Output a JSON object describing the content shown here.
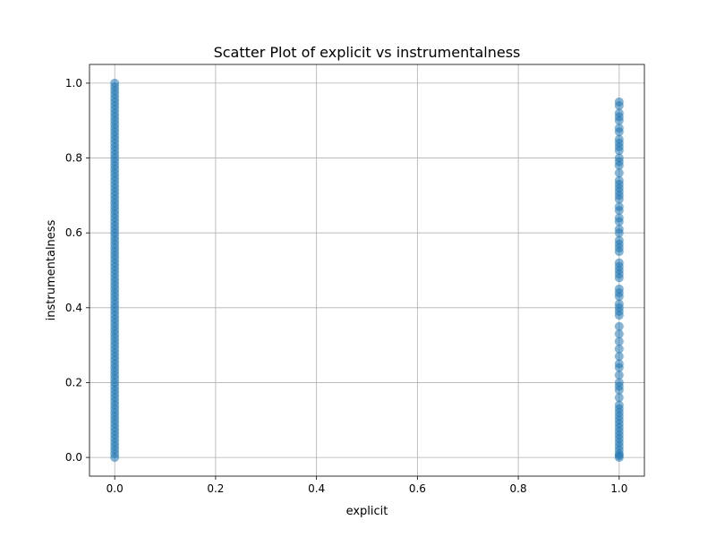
{
  "chart_data": {
    "type": "scatter",
    "title": "Scatter Plot of explicit vs instrumentalness",
    "xlabel": "explicit",
    "ylabel": "instrumentalness",
    "xlim": [
      -0.05,
      1.05
    ],
    "ylim": [
      -0.05,
      1.05
    ],
    "xticks": [
      0.0,
      0.2,
      0.4,
      0.6,
      0.8,
      1.0
    ],
    "xtick_labels": [
      "0.0",
      "0.2",
      "0.4",
      "0.6",
      "0.8",
      "1.0"
    ],
    "yticks": [
      0.0,
      0.2,
      0.4,
      0.6,
      0.8,
      1.0
    ],
    "ytick_labels": [
      "0.0",
      "0.2",
      "0.4",
      "0.6",
      "0.8",
      "1.0"
    ],
    "grid": true,
    "color": "#1f77b4",
    "series": [
      {
        "x": [
          0,
          0,
          0,
          0,
          0,
          0,
          0,
          0,
          0,
          0,
          0,
          0,
          0,
          0,
          0,
          0,
          0,
          0,
          0,
          0,
          0,
          0,
          0,
          0,
          0,
          0,
          0,
          0,
          0,
          0,
          0,
          0,
          0,
          0,
          0,
          0,
          0,
          0,
          0,
          0,
          0,
          0,
          0,
          0,
          0,
          0,
          0,
          0,
          0,
          0,
          0,
          0,
          0,
          0,
          0,
          0,
          0,
          0,
          0,
          0,
          0,
          0,
          0,
          0,
          0,
          0,
          0,
          0,
          0,
          0,
          0,
          0,
          0,
          0,
          0,
          0,
          0,
          0,
          0,
          0,
          0,
          0,
          0,
          0,
          0,
          0,
          0,
          0,
          0,
          0,
          0,
          0,
          0,
          0,
          0,
          0,
          0,
          0,
          0,
          0,
          0
        ],
        "y": [
          0.0,
          0.01,
          0.02,
          0.03,
          0.04,
          0.05,
          0.06,
          0.07,
          0.08,
          0.09,
          0.1,
          0.11,
          0.12,
          0.13,
          0.14,
          0.15,
          0.16,
          0.17,
          0.18,
          0.19,
          0.2,
          0.21,
          0.22,
          0.23,
          0.24,
          0.25,
          0.26,
          0.27,
          0.28,
          0.29,
          0.3,
          0.31,
          0.32,
          0.33,
          0.34,
          0.35,
          0.36,
          0.37,
          0.38,
          0.39,
          0.4,
          0.41,
          0.42,
          0.43,
          0.44,
          0.45,
          0.46,
          0.47,
          0.48,
          0.49,
          0.5,
          0.51,
          0.52,
          0.53,
          0.54,
          0.55,
          0.56,
          0.57,
          0.58,
          0.59,
          0.6,
          0.61,
          0.62,
          0.63,
          0.64,
          0.65,
          0.66,
          0.67,
          0.68,
          0.69,
          0.7,
          0.71,
          0.72,
          0.73,
          0.74,
          0.75,
          0.76,
          0.77,
          0.78,
          0.79,
          0.8,
          0.81,
          0.82,
          0.83,
          0.84,
          0.85,
          0.86,
          0.87,
          0.88,
          0.89,
          0.9,
          0.91,
          0.92,
          0.93,
          0.94,
          0.95,
          0.96,
          0.97,
          0.98,
          0.99,
          1.0
        ]
      },
      {
        "x": [
          1,
          1,
          1,
          1,
          1,
          1,
          1,
          1,
          1,
          1,
          1,
          1,
          1,
          1,
          1,
          1,
          1,
          1,
          1,
          1,
          1,
          1,
          1,
          1,
          1,
          1,
          1,
          1,
          1,
          1,
          1,
          1,
          1,
          1,
          1,
          1,
          1,
          1,
          1,
          1,
          1,
          1,
          1,
          1,
          1,
          1,
          1,
          1,
          1,
          1,
          1,
          1,
          1,
          1,
          1,
          1,
          1,
          1,
          1,
          1,
          1,
          1,
          1,
          1,
          1,
          1,
          1,
          1,
          1,
          1,
          1
        ],
        "y": [
          0.0,
          0.005,
          0.01,
          0.02,
          0.03,
          0.04,
          0.05,
          0.06,
          0.07,
          0.08,
          0.09,
          0.1,
          0.11,
          0.12,
          0.13,
          0.14,
          0.16,
          0.18,
          0.19,
          0.2,
          0.22,
          0.24,
          0.25,
          0.27,
          0.29,
          0.31,
          0.33,
          0.35,
          0.38,
          0.39,
          0.4,
          0.41,
          0.43,
          0.44,
          0.45,
          0.48,
          0.49,
          0.5,
          0.51,
          0.52,
          0.55,
          0.56,
          0.57,
          0.58,
          0.6,
          0.61,
          0.63,
          0.64,
          0.66,
          0.67,
          0.69,
          0.7,
          0.71,
          0.72,
          0.73,
          0.74,
          0.76,
          0.78,
          0.79,
          0.8,
          0.82,
          0.83,
          0.84,
          0.85,
          0.87,
          0.88,
          0.9,
          0.91,
          0.92,
          0.94,
          0.95
        ]
      }
    ]
  }
}
